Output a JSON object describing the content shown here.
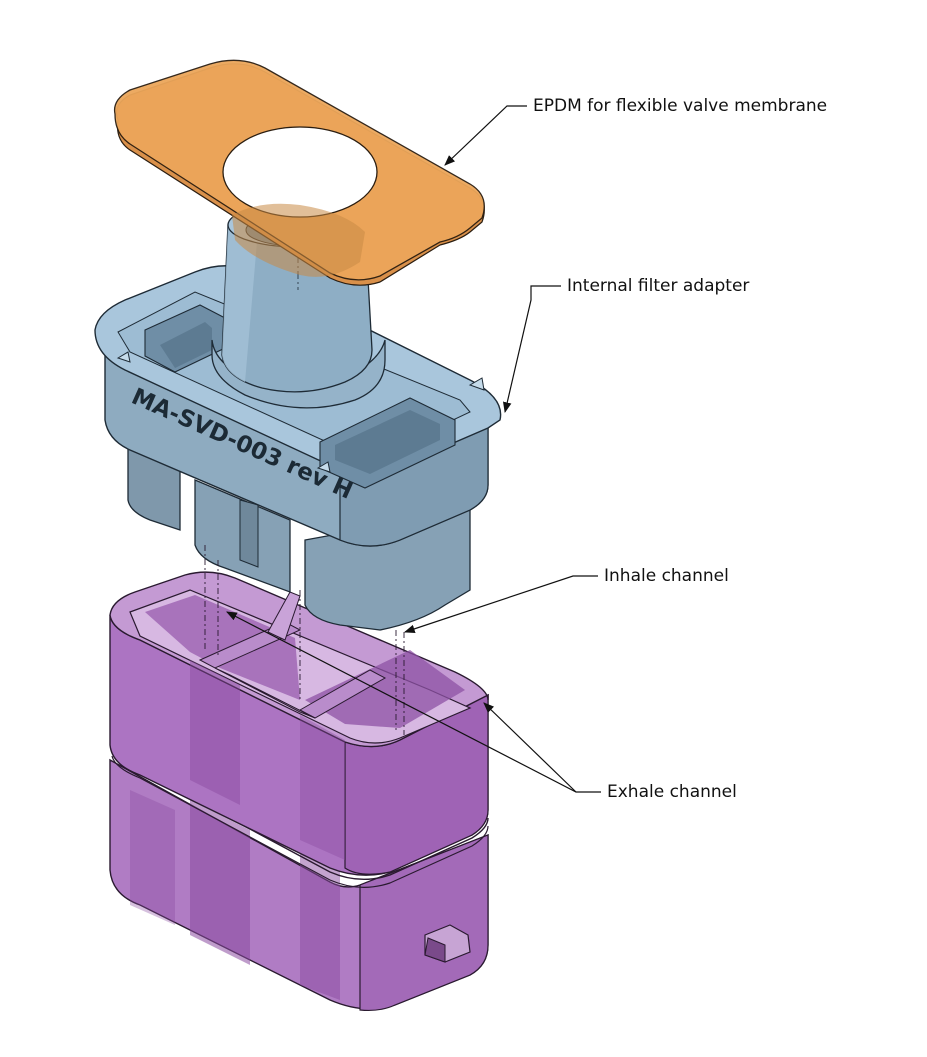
{
  "labels": {
    "epdm": "EPDM for flexible valve membrane",
    "filter_adapter": "Internal filter adapter",
    "inhale": "Inhale channel",
    "exhale": "Exhale channel"
  },
  "part_engraving": "MA-SVD-003 rev H",
  "colors": {
    "membrane": "#E8A455",
    "adapter": "#8FB2CC",
    "housing": "#A066B3",
    "leader_line": "#111111"
  }
}
